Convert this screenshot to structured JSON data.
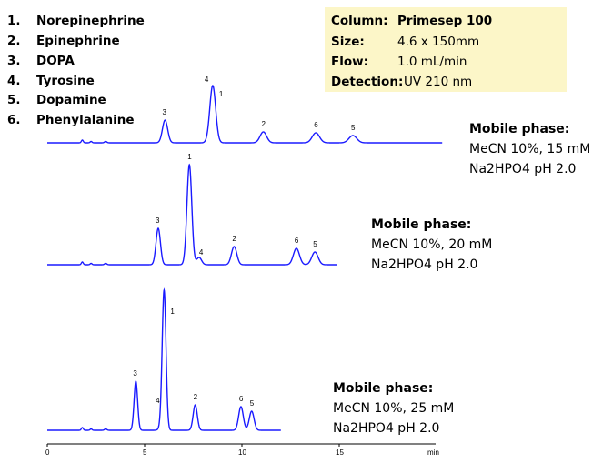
{
  "compounds": [
    {
      "num": "1.",
      "name": "Norepinephrine"
    },
    {
      "num": "2.",
      "name": "Epinephrine"
    },
    {
      "num": "3.",
      "name": "DOPA"
    },
    {
      "num": "4.",
      "name": "Tyrosine"
    },
    {
      "num": "5.",
      "name": "Dopamine"
    },
    {
      "num": "6.",
      "name": "Phenylalanine"
    }
  ],
  "conditions": [
    {
      "label": "Column:",
      "value": "Primesep 100",
      "bold_value": true
    },
    {
      "label": "Size:",
      "value": "4.6 x 150mm",
      "bold_value": false
    },
    {
      "label": "Flow:",
      "value": "1.0 mL/min",
      "bold_value": false
    },
    {
      "label": "Detection:",
      "value": "UV 210 nm",
      "bold_value": false
    }
  ],
  "colors": {
    "trace": "#1a1aff",
    "box_background": "#fcf6c8"
  },
  "chart_data": {
    "type": "line",
    "xlabel": "min",
    "xlim": [
      0,
      20
    ],
    "xticks": [
      "0",
      "5",
      "10",
      "15"
    ],
    "y_units": "relative",
    "series": [
      {
        "mobile_phase": {
          "title": "Mobile phase:",
          "line1": "MeCN 10%,  15 mM",
          "line2": "Na2HPO4 pH 2.0"
        },
        "end_time": 20.3,
        "peaks": [
          {
            "label": "3",
            "time": 6.05,
            "height": 25
          },
          {
            "label": "4",
            "time": 8.5,
            "height": 63
          },
          {
            "label": "1",
            "time": 8.5,
            "height": 0
          },
          {
            "label": "2",
            "time": 11.1,
            "height": 12
          },
          {
            "label": "6",
            "time": 13.8,
            "height": 11
          },
          {
            "label": "5",
            "time": 15.7,
            "height": 8
          }
        ]
      },
      {
        "mobile_phase": {
          "title": "Mobile phase:",
          "line1": "MeCN 10%,  20 mM",
          "line2": "Na2HPO4 pH 2.0"
        },
        "end_time": 14.9,
        "peaks": [
          {
            "label": "3",
            "time": 5.7,
            "height": 40
          },
          {
            "label": "1",
            "time": 7.3,
            "height": 110
          },
          {
            "label": "4",
            "time": 7.8,
            "height": 8
          },
          {
            "label": "2",
            "time": 9.6,
            "height": 20
          },
          {
            "label": "6",
            "time": 12.8,
            "height": 18
          },
          {
            "label": "5",
            "time": 13.75,
            "height": 14
          }
        ]
      },
      {
        "mobile_phase": {
          "title": "Mobile phase:",
          "line1": "MeCN 10%,  25 mM",
          "line2": "Na2HPO4 pH 2.0"
        },
        "end_time": 12.0,
        "peaks": [
          {
            "label": "3",
            "time": 4.55,
            "height": 54
          },
          {
            "label": "4",
            "time": 5.8,
            "height": 2
          },
          {
            "label": "1",
            "time": 6.0,
            "height": 154
          },
          {
            "label": "2",
            "time": 7.6,
            "height": 28
          },
          {
            "label": "6",
            "time": 9.95,
            "height": 26
          },
          {
            "label": "5",
            "time": 10.5,
            "height": 21
          }
        ]
      }
    ]
  }
}
